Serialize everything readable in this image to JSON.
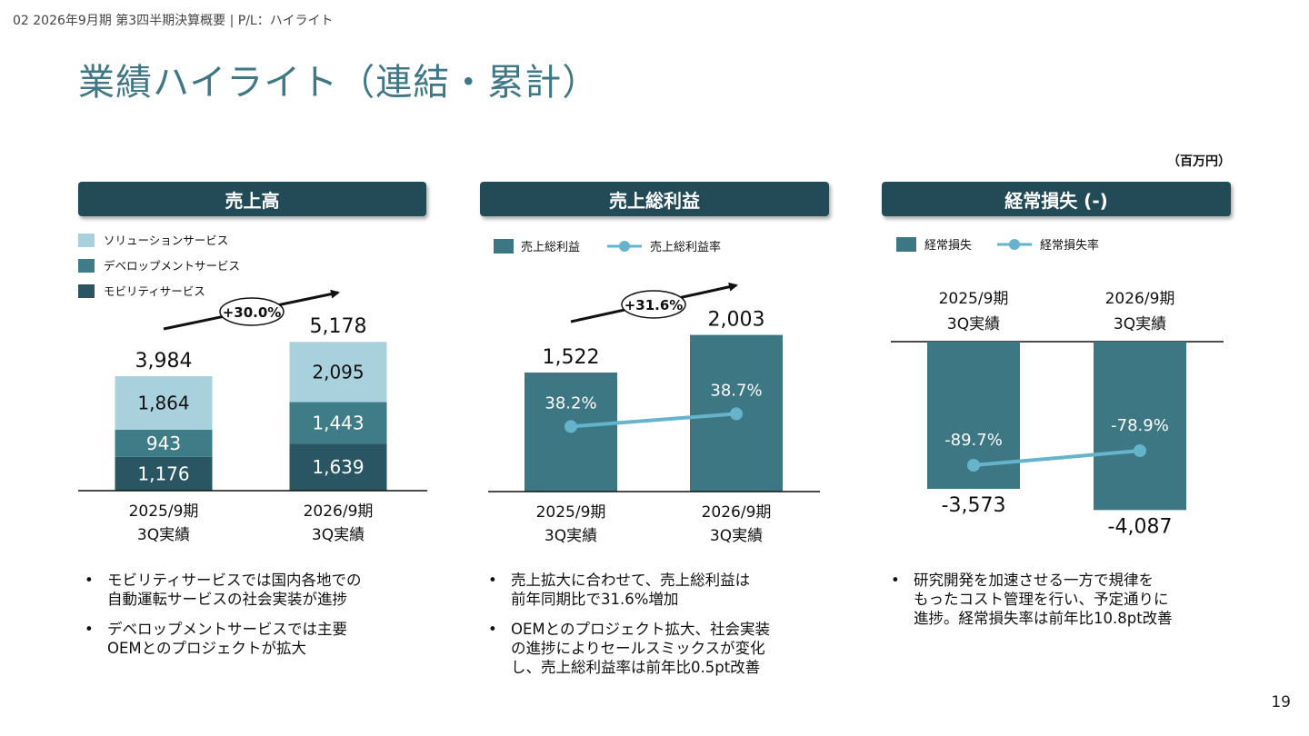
{
  "header": {
    "breadcrumb": "02 2026年9月期 第3四半期決算概要 | P/L：ハイライト",
    "title": "業績ハイライト（連結・累計）",
    "unit": "（百万円）",
    "page_number": "19"
  },
  "colors": {
    "header_bg": "#234a57",
    "solution": "#a9d1dd",
    "development": "#3e7c88",
    "mobility": "#2a5663",
    "bar": "#3d7784",
    "rate_line": "#66b3cc",
    "title": "#3f7786"
  },
  "panels": [
    {
      "header": "売上高"
    },
    {
      "header": "売上総利益"
    },
    {
      "header": "経常損失 (-)"
    }
  ],
  "chart_data": [
    {
      "type": "bar",
      "stacked": true,
      "title": "売上高",
      "categories": [
        "2025/9期\n3Q実績",
        "2026/9期\n3Q実績"
      ],
      "category_lines": [
        [
          "2025/9期",
          "3Q実績"
        ],
        [
          "2026/9期",
          "3Q実績"
        ]
      ],
      "series": [
        {
          "name": "モビリティサービス",
          "values": [
            1176,
            1639
          ]
        },
        {
          "name": "デベロップメントサービス",
          "values": [
            943,
            1443
          ]
        },
        {
          "name": "ソリューションサービス",
          "values": [
            1864,
            2095
          ]
        }
      ],
      "legend_order": [
        "ソリューションサービス",
        "デベロップメントサービス",
        "モビリティサービス"
      ],
      "totals": [
        3984,
        5178
      ],
      "total_labels": [
        "3,984",
        "5,178"
      ],
      "value_labels": [
        [
          "1,176",
          "1,639"
        ],
        [
          "943",
          "1,443"
        ],
        [
          "1,864",
          "2,095"
        ]
      ],
      "growth_label": "+30.0%",
      "legend_position": "top-left"
    },
    {
      "type": "bar",
      "title": "売上総利益",
      "categories": [
        "2025/9期\n3Q実績",
        "2026/9期\n3Q実績"
      ],
      "category_lines": [
        [
          "2025/9期",
          "3Q実績"
        ],
        [
          "2026/9期",
          "3Q実績"
        ]
      ],
      "series": [
        {
          "name": "売上総利益",
          "type": "bar",
          "values": [
            1522,
            2003
          ],
          "labels": [
            "1,522",
            "2,003"
          ]
        },
        {
          "name": "売上総利益率",
          "type": "line",
          "values": [
            38.2,
            38.7
          ],
          "labels": [
            "38.2%",
            "38.7%"
          ]
        }
      ],
      "growth_label": "+31.6%",
      "legend_position": "top-left"
    },
    {
      "type": "bar",
      "title": "経常損失 (-)",
      "categories": [
        "2025/9期\n3Q実績",
        "2026/9期\n3Q実績"
      ],
      "category_lines": [
        [
          "2025/9期",
          "3Q実績"
        ],
        [
          "2026/9期",
          "3Q実績"
        ]
      ],
      "series": [
        {
          "name": "経常損失",
          "type": "bar",
          "values": [
            -3573,
            -4087
          ],
          "labels": [
            "-3,573",
            "-4,087"
          ]
        },
        {
          "name": "経常損失率",
          "type": "line",
          "values": [
            -89.7,
            -78.9
          ],
          "labels": [
            "-89.7%",
            "-78.9%"
          ]
        }
      ],
      "legend_position": "top-left"
    }
  ],
  "notes": [
    [
      [
        "モビリティサービスでは国内各地での",
        "自動運転サービスの社会実装が進捗"
      ],
      [
        "デベロップメントサービスでは主要",
        "OEMとのプロジェクトが拡大"
      ]
    ],
    [
      [
        "売上拡大に合わせて、売上総利益は",
        "前年同期比で31.6%増加"
      ],
      [
        "OEMとのプロジェクト拡大、社会実装",
        "の進捗によりセールスミックスが変化",
        "し、売上総利益率は前年比0.5pt改善"
      ]
    ],
    [
      [
        "研究開発を加速させる一方で規律を",
        "もったコスト管理を行い、予定通りに",
        "進捗。経常損失率は前年比10.8pt改善"
      ]
    ]
  ]
}
